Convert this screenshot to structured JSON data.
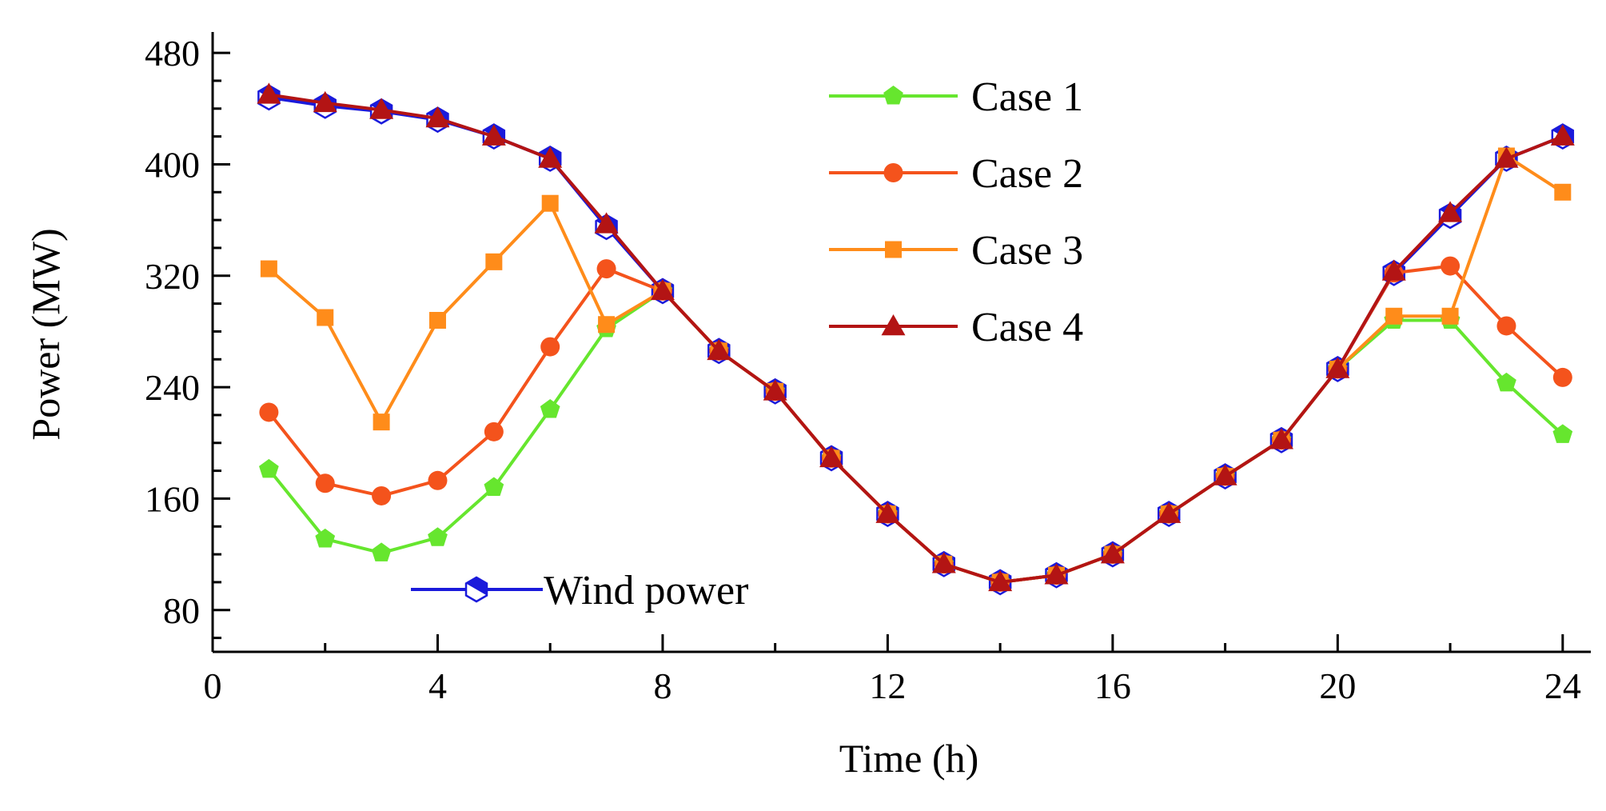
{
  "chart_data": {
    "type": "line",
    "title": "",
    "xlabel": "Time (h)",
    "ylabel": "Power (MW)",
    "xlim": [
      0,
      24.5
    ],
    "ylim": [
      50,
      495
    ],
    "xticks": [
      0,
      4,
      8,
      12,
      16,
      20,
      24
    ],
    "yticks": [
      80,
      160,
      240,
      320,
      400,
      480
    ],
    "x": [
      1,
      2,
      3,
      4,
      5,
      6,
      7,
      8,
      9,
      10,
      11,
      12,
      13,
      14,
      15,
      16,
      17,
      18,
      19,
      20,
      21,
      22,
      23,
      24
    ],
    "grid": false,
    "series": [
      {
        "name": "Wind power",
        "color": "#1a1adb",
        "marker": "hexagon",
        "values": [
          448,
          442,
          438,
          432,
          420,
          404,
          355,
          309,
          266,
          237,
          189,
          149,
          113,
          100,
          105,
          120,
          149,
          176,
          202,
          253,
          322,
          363,
          404,
          420
        ]
      },
      {
        "name": "Case 1",
        "color": "#66e62e",
        "marker": "diamond",
        "values": [
          181,
          131,
          121,
          132,
          168,
          224,
          282,
          309,
          266,
          237,
          189,
          149,
          113,
          100,
          105,
          120,
          149,
          176,
          202,
          253,
          288,
          288,
          243,
          206
        ]
      },
      {
        "name": "Case 2",
        "color": "#f4531c",
        "marker": "circle",
        "values": [
          222,
          171,
          162,
          173,
          208,
          269,
          325,
          309,
          266,
          237,
          189,
          149,
          113,
          100,
          105,
          120,
          149,
          176,
          202,
          253,
          322,
          327,
          284,
          247
        ]
      },
      {
        "name": "Case 3",
        "color": "#ff8c1a",
        "marker": "square",
        "values": [
          325,
          290,
          215,
          288,
          330,
          372,
          285,
          309,
          266,
          237,
          189,
          149,
          113,
          100,
          105,
          120,
          149,
          176,
          202,
          253,
          291,
          291,
          406,
          380
        ]
      },
      {
        "name": "Case 4",
        "color": "#b31414",
        "marker": "triangle",
        "values": [
          450,
          444,
          439,
          433,
          420,
          404,
          357,
          309,
          266,
          237,
          189,
          149,
          113,
          100,
          105,
          120,
          149,
          176,
          202,
          253,
          323,
          365,
          404,
          420
        ]
      }
    ],
    "legend": {
      "placement": "top-right",
      "entries": [
        "Case 1",
        "Case 2",
        "Case 3",
        "Case 4"
      ]
    },
    "annotation": {
      "label": "Wind power",
      "placement": "bottom-left"
    }
  }
}
